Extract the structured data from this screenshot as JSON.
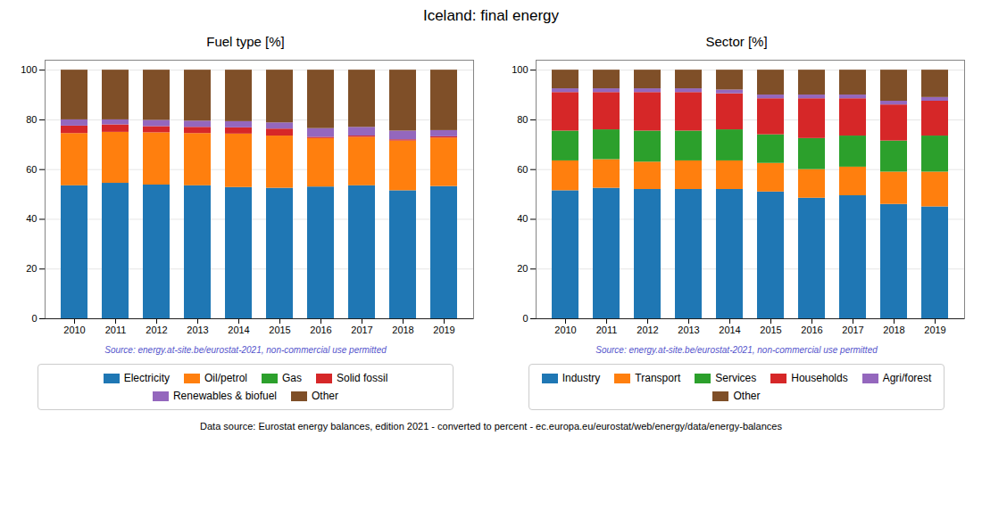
{
  "title": "Iceland: final energy",
  "annotations": [
    "Data source: Eurostat energy balances, edition 2021 - converted to percent - ec.europa.eu/eurostat/web/energy/data/energy-balances"
  ],
  "chart_data": [
    {
      "type": "bar",
      "stacked": true,
      "title": "Fuel type [%]",
      "categories": [
        "2010",
        "2011",
        "2012",
        "2013",
        "2014",
        "2015",
        "2016",
        "2017",
        "2018",
        "2019"
      ],
      "series": [
        {
          "name": "Electricity",
          "color": "#1f77b4",
          "values": [
            53.5,
            54.5,
            53.8,
            53.5,
            52.8,
            52.5,
            53.0,
            53.5,
            51.5,
            53.2
          ]
        },
        {
          "name": "Oil/petrol",
          "color": "#ff7f0e",
          "values": [
            21.0,
            20.5,
            21.0,
            21.0,
            21.5,
            21.0,
            19.5,
            19.5,
            20.0,
            19.5
          ]
        },
        {
          "name": "Gas",
          "color": "#2ca02c",
          "values": [
            0.0,
            0.0,
            0.0,
            0.0,
            0.0,
            0.0,
            0.0,
            0.0,
            0.0,
            0.0
          ]
        },
        {
          "name": "Solid fossil",
          "color": "#d62728",
          "values": [
            3.0,
            3.0,
            2.5,
            2.5,
            2.5,
            2.8,
            0.5,
            0.5,
            0.5,
            0.5
          ]
        },
        {
          "name": "Renewables & biofuel",
          "color": "#9467bd",
          "values": [
            2.5,
            2.0,
            2.5,
            2.5,
            2.5,
            2.5,
            3.5,
            3.5,
            3.5,
            2.5
          ]
        },
        {
          "name": "Other",
          "color": "#7f4f28",
          "values": [
            20.0,
            20.0,
            20.2,
            20.5,
            20.7,
            21.2,
            23.5,
            23.0,
            24.5,
            24.3
          ]
        }
      ],
      "ylim": [
        0,
        104
      ],
      "yticks": [
        0,
        20,
        40,
        60,
        80,
        100
      ],
      "grid": true,
      "legend": "bottom",
      "annotations": [
        {
          "text": "Source: energy.at-site.be/eurostat-2021, non-commercial use permitted",
          "color": "#5555cc"
        }
      ]
    },
    {
      "type": "bar",
      "stacked": true,
      "title": "Sector [%]",
      "categories": [
        "2010",
        "2011",
        "2012",
        "2013",
        "2014",
        "2015",
        "2016",
        "2017",
        "2018",
        "2019"
      ],
      "series": [
        {
          "name": "Industry",
          "color": "#1f77b4",
          "values": [
            51.5,
            52.5,
            52.0,
            52.0,
            52.0,
            51.0,
            48.5,
            49.5,
            46.0,
            45.0
          ]
        },
        {
          "name": "Transport",
          "color": "#ff7f0e",
          "values": [
            12.0,
            11.5,
            11.0,
            11.5,
            11.5,
            11.5,
            11.5,
            11.5,
            13.0,
            14.0
          ]
        },
        {
          "name": "Services",
          "color": "#2ca02c",
          "values": [
            12.0,
            12.0,
            12.5,
            12.0,
            12.5,
            11.5,
            12.5,
            12.5,
            12.5,
            14.5
          ]
        },
        {
          "name": "Households",
          "color": "#d62728",
          "values": [
            15.5,
            15.0,
            15.5,
            15.5,
            14.5,
            14.5,
            16.0,
            15.0,
            14.5,
            14.0
          ]
        },
        {
          "name": "Agri/forest",
          "color": "#9467bd",
          "values": [
            1.5,
            1.5,
            1.5,
            1.5,
            1.5,
            1.5,
            1.5,
            1.5,
            1.5,
            1.5
          ]
        },
        {
          "name": "Other",
          "color": "#7f4f28",
          "values": [
            7.5,
            7.5,
            7.5,
            7.5,
            8.0,
            10.0,
            10.0,
            10.0,
            12.5,
            11.0
          ]
        }
      ],
      "ylim": [
        0,
        104
      ],
      "yticks": [
        0,
        20,
        40,
        60,
        80,
        100
      ],
      "grid": true,
      "legend": "bottom",
      "annotations": [
        {
          "text": "Source: energy.at-site.be/eurostat-2021, non-commercial use permitted",
          "color": "#5555cc"
        }
      ]
    }
  ]
}
